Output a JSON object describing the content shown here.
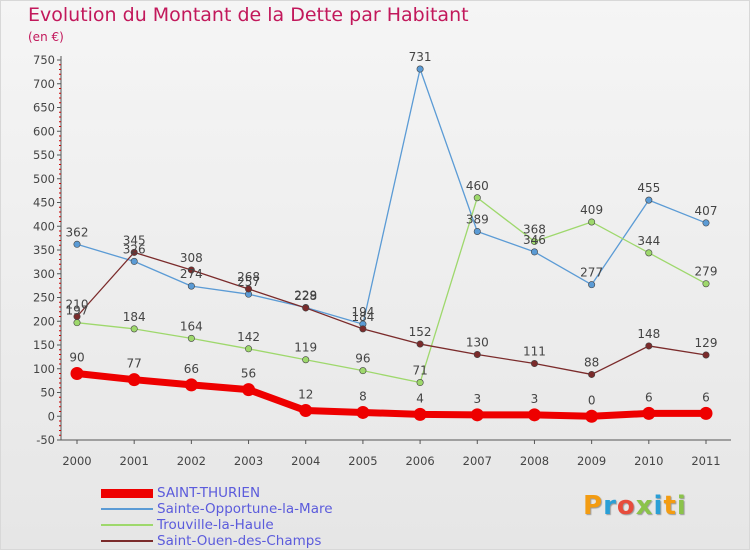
{
  "header": {
    "title": "Evolution du Montant de la Dette par Habitant",
    "unit": "(en €)"
  },
  "logo": {
    "text": "Proxiti",
    "letter_colors": [
      "#f39c12",
      "#2a9fd6",
      "#e74c3c",
      "#8bc34a",
      "#2a9fd6",
      "#f39c12",
      "#8bc34a"
    ]
  },
  "chart_data": {
    "type": "line",
    "title": "Evolution du Montant de la Dette par Habitant",
    "subtitle": "(en €)",
    "xlabel": "",
    "ylabel": "",
    "x": [
      "2000",
      "2001",
      "2002",
      "2003",
      "2004",
      "2005",
      "2006",
      "2007",
      "2008",
      "2009",
      "2010",
      "2011"
    ],
    "ylim": [
      -50,
      750
    ],
    "yticks": [
      -50,
      0,
      50,
      100,
      150,
      200,
      250,
      300,
      350,
      400,
      450,
      500,
      550,
      600,
      650,
      700,
      750
    ],
    "grid": false,
    "legend_position": "bottom-left",
    "series": [
      {
        "name": "SAINT-THURIEN",
        "color": "#ee0000",
        "values": [
          90,
          77,
          66,
          56,
          12,
          8,
          4,
          3,
          3,
          0,
          6,
          6
        ]
      },
      {
        "name": "Sainte-Opportune-la-Mare",
        "color": "#5b9bd5",
        "values": [
          362,
          326,
          274,
          257,
          229,
          194,
          731,
          389,
          346,
          277,
          455,
          407
        ]
      },
      {
        "name": "Trouville-la-Haule",
        "color": "#9ed86c",
        "values": [
          197,
          184,
          164,
          142,
          119,
          96,
          71,
          460,
          368,
          409,
          344,
          279
        ]
      },
      {
        "name": "Saint-Ouen-des-Champs",
        "color": "#7b2b2b",
        "values": [
          210,
          345,
          308,
          268,
          228,
          184,
          152,
          130,
          111,
          88,
          148,
          129
        ]
      }
    ],
    "data_labels": [
      [
        "90",
        "77",
        "66",
        "56",
        "12",
        "8",
        "4",
        "3",
        "3",
        "0",
        "6",
        "6"
      ],
      [
        "362",
        "326",
        "274",
        "257",
        "229",
        "194",
        "731",
        "389",
        "346",
        "277",
        "455",
        "407"
      ],
      [
        "197",
        "184",
        "164",
        "142",
        "119",
        "96",
        "71",
        "460",
        "368",
        "409",
        "344",
        "279"
      ],
      [
        "210",
        "345",
        "308",
        "268",
        "228",
        "184",
        "152",
        "130",
        "111",
        "88",
        "148",
        "129"
      ]
    ]
  }
}
